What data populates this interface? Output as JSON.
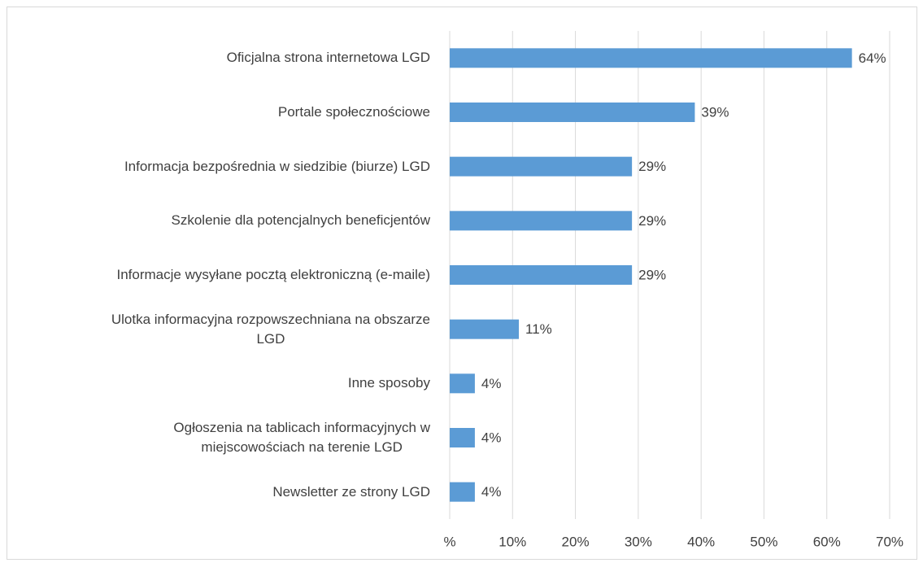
{
  "chart_data": {
    "type": "bar",
    "orientation": "horizontal",
    "categories": [
      "Oficjalna strona internetowa LGD",
      "Portale społecznościowe",
      "Informacja bezpośrednia w siedzibie (biurze) LGD",
      "Szkolenie dla potencjalnych beneficjentów",
      "Informacje wysyłane pocztą elektroniczną (e-maile)",
      "Ulotka informacyjna rozpowszechniana na obszarze\nLGD",
      "Inne sposoby",
      "Ogłoszenia na tablicach informacyjnych w\nmiejscowościach na terenie LGD",
      "Newsletter ze strony LGD"
    ],
    "values": [
      64,
      39,
      29,
      29,
      29,
      11,
      4,
      4,
      4
    ],
    "value_labels": [
      "64%",
      "39%",
      "29%",
      "29%",
      "29%",
      "11%",
      "4%",
      "4%",
      "4%"
    ],
    "color": "#5b9bd5",
    "xlim": [
      0,
      70
    ],
    "xticks": [
      {
        "value": 0,
        "label": "%"
      },
      {
        "value": 10,
        "label": "10%"
      },
      {
        "value": 20,
        "label": "20%"
      },
      {
        "value": 30,
        "label": "30%"
      },
      {
        "value": 40,
        "label": "40%"
      },
      {
        "value": 50,
        "label": "50%"
      },
      {
        "value": 60,
        "label": "60%"
      },
      {
        "value": 70,
        "label": "70%"
      }
    ],
    "grid": true
  }
}
